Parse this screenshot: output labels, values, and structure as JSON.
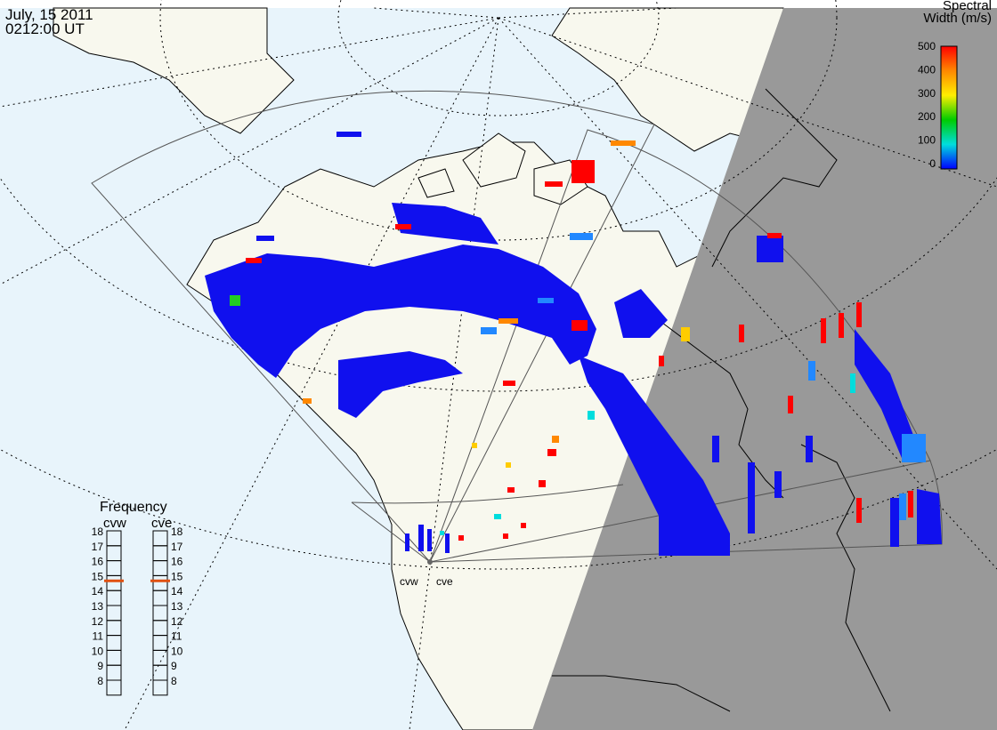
{
  "header": {
    "date": "July, 15 2011",
    "time": "0212:00 UT"
  },
  "legend": {
    "title_line1": "Spectral",
    "title_line2": "Width (m/s)",
    "ticks": [
      "500",
      "400",
      "300",
      "200",
      "100",
      "0"
    ],
    "colors": [
      "#ff0000",
      "#ff8800",
      "#ffee00",
      "#00cc00",
      "#00dddd",
      "#0000ff"
    ]
  },
  "frequency": {
    "title": "Frequency",
    "radars": [
      {
        "code": "cvw",
        "current": 15
      },
      {
        "code": "cve",
        "current": 15
      }
    ],
    "levels": [
      "18",
      "17",
      "16",
      "15",
      "14",
      "13",
      "12",
      "11",
      "10",
      "9",
      "8"
    ]
  },
  "radar_sites": {
    "labels": [
      "cvw",
      "cve"
    ]
  },
  "colors": {
    "ocean": "#e8f4fb",
    "land": "#f8f8ee",
    "night": "#999999",
    "scatter_low": "#1010ee",
    "fov_line": "#555555",
    "marker": "#e05010"
  }
}
